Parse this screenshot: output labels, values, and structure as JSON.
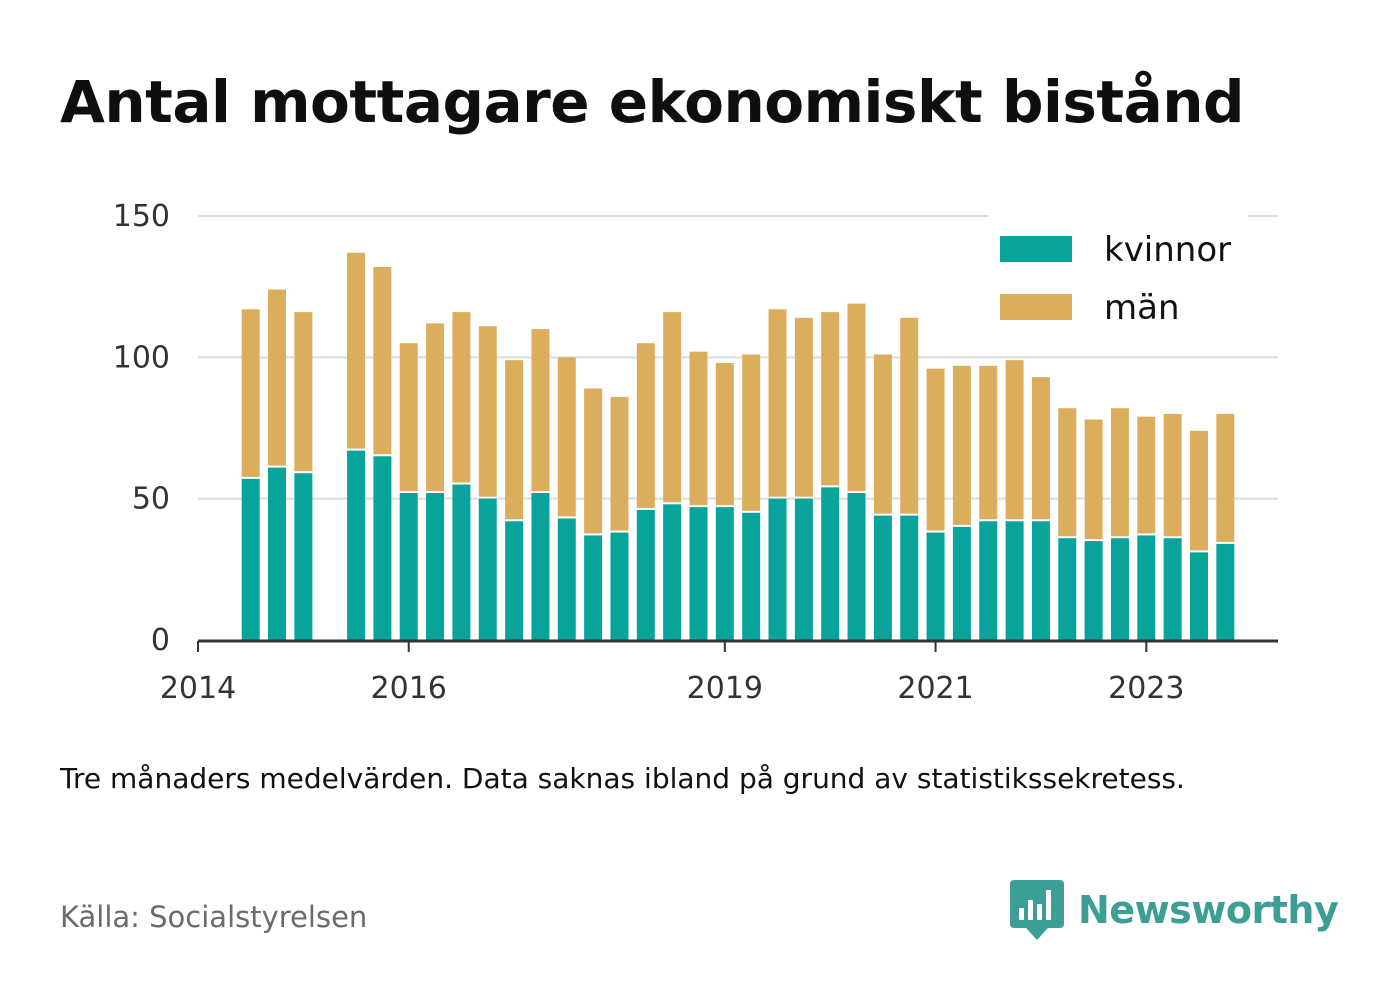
{
  "title": "Antal mottagare ekonomiskt bistånd",
  "note": "Tre månaders medelvärden. Data saknas ibland på grund av statistikssekretess.",
  "source": "Källa: Socialstyrelsen",
  "brand": {
    "name": "Newsworthy",
    "icon": "newsworthy-logo-icon",
    "color": "#3d9e95"
  },
  "chart_data": {
    "type": "bar",
    "stacked": true,
    "x": [
      2014.5,
      2014.75,
      2015.0,
      2015.5,
      2015.75,
      2016.0,
      2016.25,
      2016.5,
      2016.75,
      2017.0,
      2017.25,
      2017.5,
      2017.75,
      2018.0,
      2018.25,
      2018.5,
      2018.75,
      2019.0,
      2019.25,
      2019.5,
      2019.75,
      2020.0,
      2020.25,
      2020.5,
      2020.75,
      2021.0,
      2021.25,
      2021.5,
      2021.75,
      2022.0,
      2022.25,
      2022.5,
      2022.75,
      2023.0,
      2023.25,
      2023.5,
      2023.75
    ],
    "series": [
      {
        "name": "kvinnor",
        "color": "#08a39a",
        "values": [
          57,
          61,
          59,
          67,
          65,
          52,
          52,
          55,
          50,
          42,
          52,
          43,
          37,
          38,
          46,
          48,
          47,
          47,
          45,
          50,
          50,
          54,
          52,
          44,
          44,
          38,
          40,
          42,
          42,
          42,
          36,
          35,
          36,
          37,
          36,
          31,
          34
        ]
      },
      {
        "name": "män",
        "color": "#dbae5d",
        "values": [
          60,
          63,
          57,
          70,
          67,
          53,
          60,
          61,
          61,
          57,
          58,
          57,
          52,
          48,
          59,
          68,
          55,
          51,
          56,
          67,
          64,
          62,
          67,
          57,
          70,
          58,
          57,
          55,
          57,
          51,
          46,
          43,
          46,
          42,
          44,
          43,
          46
        ]
      }
    ],
    "xticks": [
      2014,
      2016,
      2019,
      2021,
      2023
    ],
    "xtick_labels": [
      "2014",
      "2016",
      "2019",
      "2021",
      "2023"
    ],
    "xlim": [
      2014,
      2024.25
    ],
    "yticks": [
      0,
      50,
      100,
      150
    ],
    "ylim": [
      0,
      150
    ],
    "legend": {
      "placement": "top-right",
      "entries": [
        "kvinnor",
        "män"
      ]
    },
    "grid": true,
    "xlabel": "",
    "ylabel": ""
  }
}
